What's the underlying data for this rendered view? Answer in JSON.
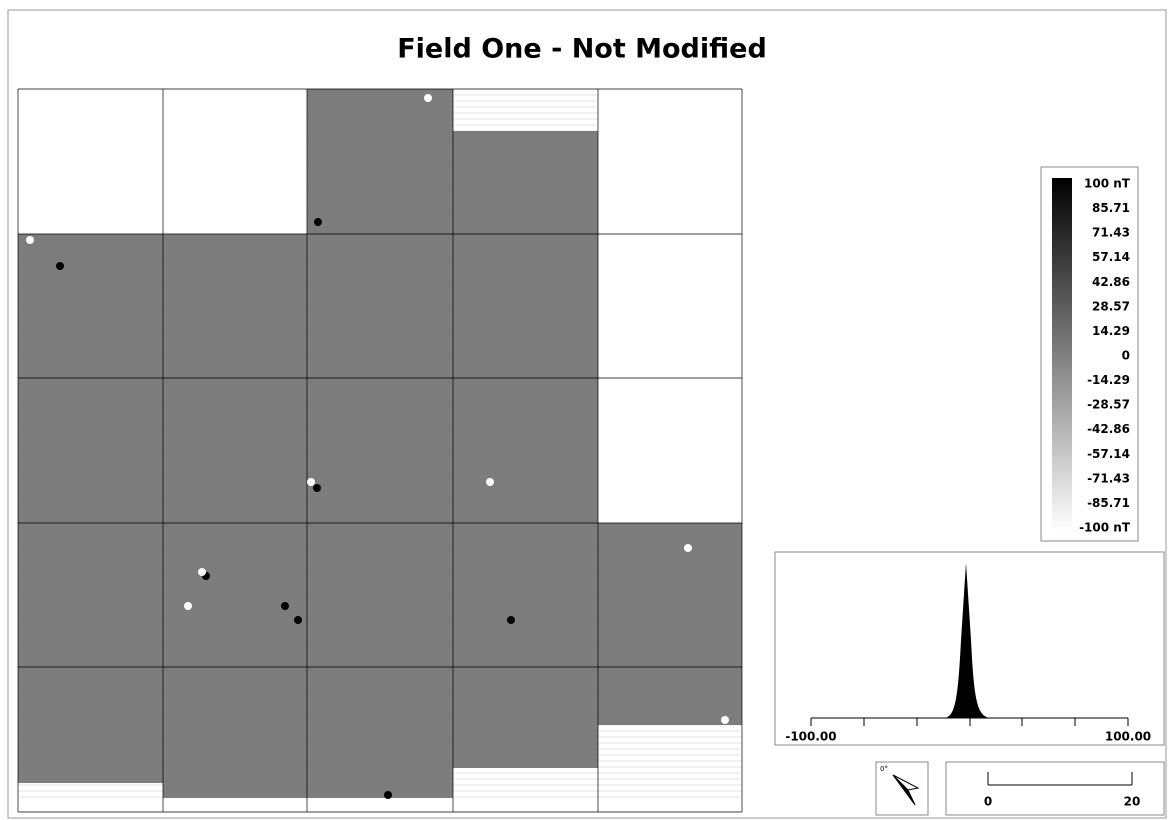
{
  "title": "Field One - Not Modified",
  "colorbar": {
    "lim": [
      -100,
      100
    ],
    "ticks": [
      {
        "value": 100,
        "label": "100 nT"
      },
      85.71,
      71.43,
      57.14,
      42.86,
      28.57,
      14.29,
      0,
      -14.29,
      -28.57,
      -42.86,
      -57.14,
      -71.43,
      -85.71,
      {
        "value": -100,
        "label": "-100 nT"
      }
    ]
  },
  "histogram": {
    "xlim": [
      -100,
      100
    ],
    "xticks": [
      {
        "value": -100,
        "label": "-100.00"
      },
      {
        "value": 100,
        "label": "100.00"
      }
    ]
  },
  "north_arrow": {
    "label": "0°"
  },
  "scale_bar": {
    "lim": [
      0,
      20
    ],
    "ticks": [
      0,
      20
    ]
  }
}
